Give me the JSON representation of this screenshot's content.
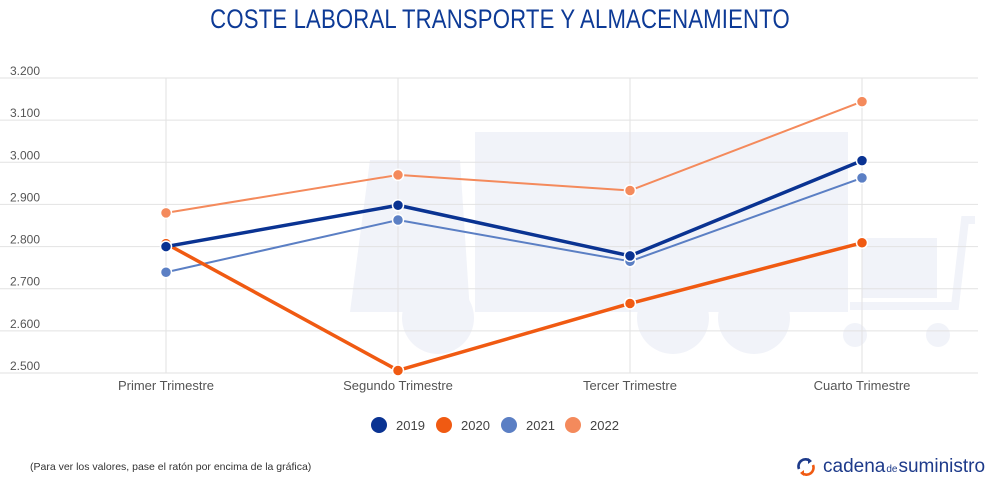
{
  "title": "COSTE LABORAL TRANSPORTE Y ALMACENAMIENTO",
  "footnote": "(Para ver los valores, pase el ratón por encima de la gráfica)",
  "logo": {
    "part1": "cadena",
    "part2": "de",
    "part3": "suministro"
  },
  "chart_data": {
    "type": "line",
    "title": "COSTE LABORAL TRANSPORTE Y ALMACENAMIENTO",
    "categories": [
      "Primer Trimestre",
      "Segundo Trimestre",
      "Tercer Trimestre",
      "Cuarto Trimestre"
    ],
    "ylim": [
      2500,
      3200
    ],
    "yticks": [
      2500,
      2600,
      2700,
      2800,
      2900,
      3000,
      3100,
      3200
    ],
    "ytick_labels": [
      "2.500",
      "2.600",
      "2.700",
      "2.800",
      "2.900",
      "3.000",
      "3.100",
      "3.200"
    ],
    "grid": true,
    "legend_position": "bottom",
    "series": [
      {
        "name": "2019",
        "color": "#0a3392",
        "values": [
          2800,
          2898,
          2778,
          3004
        ]
      },
      {
        "name": "2020",
        "color": "#f05a12",
        "values": [
          2807,
          2506,
          2665,
          2809
        ]
      },
      {
        "name": "2021",
        "color": "#5b7fc4",
        "values": [
          2739,
          2863,
          2765,
          2963
        ]
      },
      {
        "name": "2022",
        "color": "#f48a5c",
        "values": [
          2880,
          2970,
          2933,
          3144
        ]
      }
    ]
  }
}
